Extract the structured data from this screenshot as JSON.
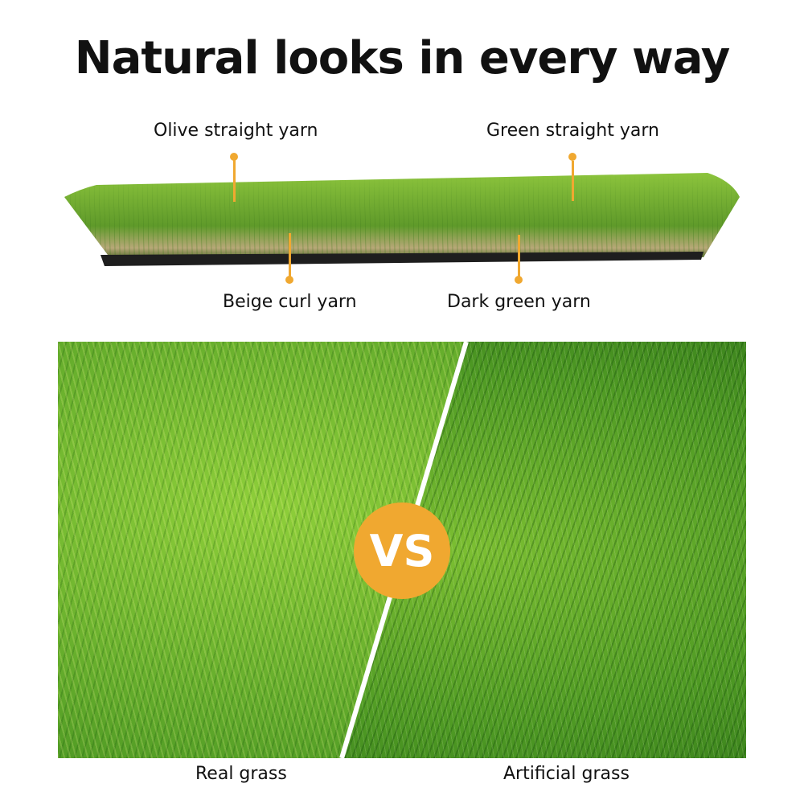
{
  "title": "Natural looks in every way",
  "callouts": {
    "olive": "Olive straight yarn",
    "green": "Green straight yarn",
    "beige": "Beige curl yarn",
    "dark": "Dark green yarn"
  },
  "comparison": {
    "badge": "VS",
    "left_caption": "Real grass",
    "right_caption": "Artificial grass"
  },
  "colors": {
    "accent": "#f0a830"
  }
}
